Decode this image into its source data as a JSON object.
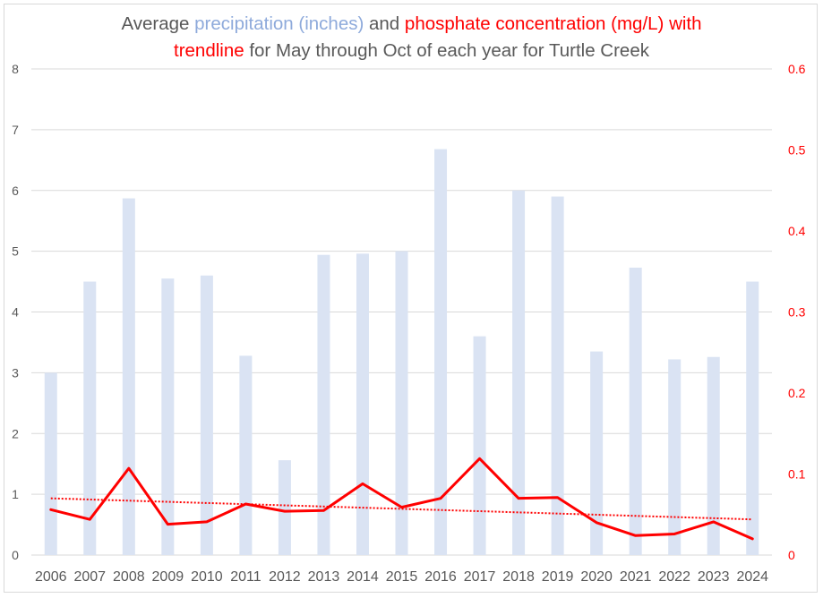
{
  "chart_data": {
    "type": "bar+line",
    "title": {
      "segments": [
        {
          "text": "Average ",
          "color": "#595959"
        },
        {
          "text": "precipitation (inches)",
          "color": "#8eaadb"
        },
        {
          "text": " and ",
          "color": "#595959"
        },
        {
          "text": "phosphate concentration (mg/L) with",
          "color": "#ff0000"
        },
        {
          "text": "trendline",
          "color": "#ff0000",
          "newline": true
        },
        {
          "text": " for May through Oct of each year for Turtle Creek",
          "color": "#595959"
        }
      ]
    },
    "categories": [
      "2006",
      "2007",
      "2008",
      "2009",
      "2010",
      "2011",
      "2012",
      "2013",
      "2014",
      "2015",
      "2016",
      "2017",
      "2018",
      "2019",
      "2020",
      "2021",
      "2022",
      "2023",
      "2024"
    ],
    "series": [
      {
        "name": "Average precipitation (inches)",
        "type": "bar",
        "axis": "left",
        "color": "#dae3f3",
        "values": [
          3.0,
          4.5,
          5.87,
          4.55,
          4.6,
          3.28,
          1.56,
          4.94,
          4.96,
          5.0,
          6.68,
          3.6,
          6.0,
          5.9,
          3.35,
          4.73,
          3.22,
          3.26,
          4.5
        ]
      },
      {
        "name": "Phosphate concentration (mg/L)",
        "type": "line",
        "axis": "right",
        "color": "#ff0000",
        "values": [
          0.056,
          0.044,
          0.107,
          0.038,
          0.041,
          0.063,
          0.054,
          0.055,
          0.088,
          0.059,
          0.07,
          0.119,
          0.07,
          0.071,
          0.04,
          0.024,
          0.026,
          0.041,
          0.02
        ]
      },
      {
        "name": "Linear trendline (phosphate)",
        "type": "trendline",
        "axis": "right",
        "color": "#ff0000",
        "style": "dotted",
        "start": 0.07,
        "end": 0.044
      }
    ],
    "left_axis": {
      "min": 0,
      "max": 8,
      "step": 1,
      "tick_labels": [
        "0",
        "1",
        "2",
        "3",
        "4",
        "5",
        "6",
        "7",
        "8"
      ]
    },
    "right_axis": {
      "min": 0,
      "max": 0.6,
      "step": 0.1,
      "tick_labels": [
        "0",
        "0.1",
        "0.2",
        "0.3",
        "0.4",
        "0.5",
        "0.6"
      ],
      "color": "#ff0000"
    },
    "xlabel": "",
    "ylabel": "",
    "grid": true,
    "legend": "none"
  }
}
